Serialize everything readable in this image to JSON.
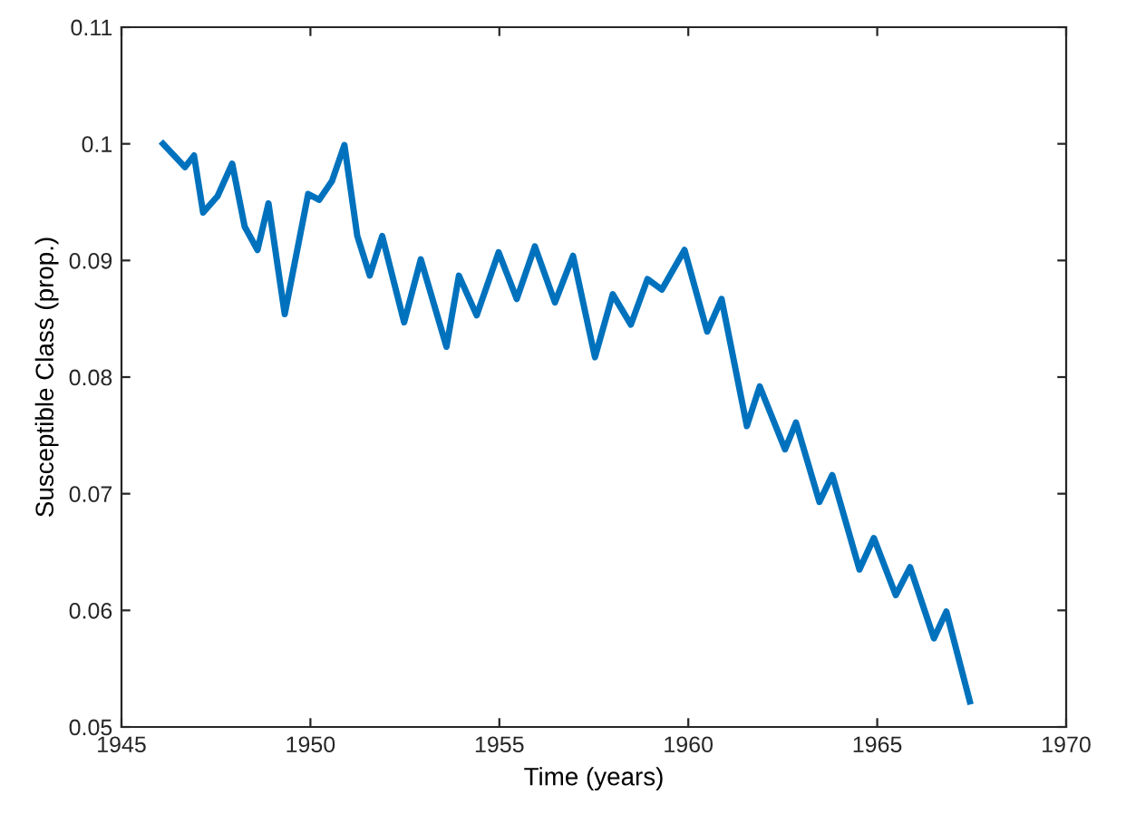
{
  "chart_data": {
    "type": "line",
    "xlabel": "Time (years)",
    "ylabel": "Susceptible Class (prop.)",
    "x": [
      1946.1,
      1946.68,
      1946.92,
      1947.16,
      1947.54,
      1947.93,
      1948.26,
      1948.6,
      1948.89,
      1949.32,
      1949.94,
      1950.23,
      1950.57,
      1950.9,
      1951.24,
      1951.57,
      1951.9,
      1952.48,
      1952.92,
      1953.6,
      1953.93,
      1954.4,
      1954.98,
      1955.46,
      1955.94,
      1956.47,
      1956.95,
      1957.53,
      1958.0,
      1958.48,
      1958.92,
      1959.3,
      1959.9,
      1960.5,
      1960.88,
      1961.55,
      1961.89,
      1962.56,
      1962.85,
      1963.47,
      1963.81,
      1964.53,
      1964.91,
      1965.49,
      1965.87,
      1966.5,
      1966.83,
      1967.45
    ],
    "series": [
      {
        "color": "#0072bd",
        "values": [
          0.1,
          0.098,
          0.099,
          0.0941,
          0.0955,
          0.0983,
          0.0929,
          0.0909,
          0.0949,
          0.0854,
          0.0957,
          0.0952,
          0.0968,
          0.0999,
          0.0921,
          0.0887,
          0.0921,
          0.0847,
          0.0901,
          0.0826,
          0.0887,
          0.0853,
          0.0907,
          0.0867,
          0.0912,
          0.0864,
          0.0904,
          0.0817,
          0.0871,
          0.0845,
          0.0884,
          0.0875,
          0.0909,
          0.0839,
          0.0867,
          0.0758,
          0.0792,
          0.0738,
          0.0761,
          0.0693,
          0.0716,
          0.0635,
          0.0662,
          0.0613,
          0.0637,
          0.0576,
          0.0599,
          0.0522
        ]
      }
    ],
    "xlim": [
      1945,
      1970
    ],
    "xticks": [
      1945,
      1950,
      1955,
      1960,
      1965,
      1970
    ],
    "ylim": [
      0.05,
      0.11
    ],
    "yticks": [
      0.05,
      0.06,
      0.07,
      0.08,
      0.09,
      0.1,
      0.11
    ],
    "grid": false,
    "legend": false,
    "marker": "none",
    "line_style": "solid"
  }
}
